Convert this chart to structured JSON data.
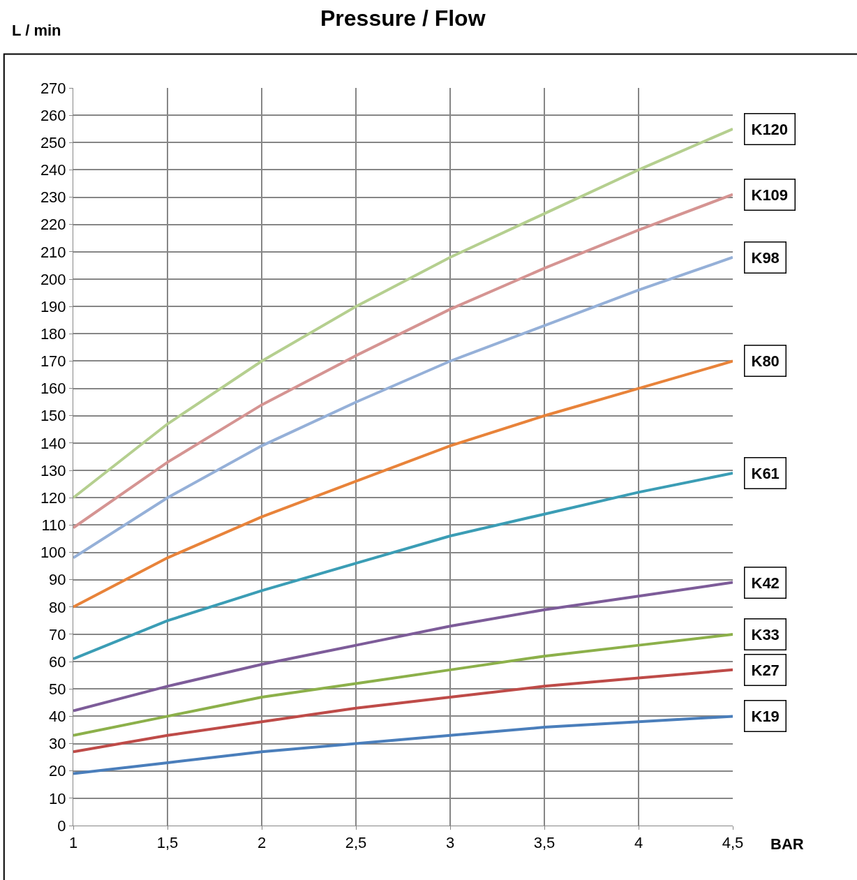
{
  "chart_data": {
    "type": "line",
    "title": "Pressure / Flow",
    "xlabel": "BAR",
    "ylabel": "L / min",
    "x": [
      1,
      1.5,
      2,
      2.5,
      3,
      3.5,
      4,
      4.5
    ],
    "series": [
      {
        "name": "K19",
        "color": "#4a7ebb",
        "values": [
          19,
          23,
          27,
          30,
          33,
          36,
          38,
          40
        ]
      },
      {
        "name": "K27",
        "color": "#be4b48",
        "values": [
          27,
          33,
          38,
          43,
          47,
          51,
          54,
          57
        ]
      },
      {
        "name": "K33",
        "color": "#8cb04a",
        "values": [
          33,
          40,
          47,
          52,
          57,
          62,
          66,
          70
        ]
      },
      {
        "name": "K42",
        "color": "#7d5c99",
        "values": [
          42,
          51,
          59,
          66,
          73,
          79,
          84,
          89
        ]
      },
      {
        "name": "K61",
        "color": "#3b9db5",
        "values": [
          61,
          75,
          86,
          96,
          106,
          114,
          122,
          129
        ]
      },
      {
        "name": "K80",
        "color": "#e8833a",
        "values": [
          80,
          98,
          113,
          126,
          139,
          150,
          160,
          170
        ]
      },
      {
        "name": "K98",
        "color": "#95b0d8",
        "values": [
          98,
          120,
          139,
          155,
          170,
          183,
          196,
          208
        ]
      },
      {
        "name": "K109",
        "color": "#d59492",
        "values": [
          109,
          133,
          154,
          172,
          189,
          204,
          218,
          231
        ]
      },
      {
        "name": "K120",
        "color": "#b5cf8f",
        "values": [
          120,
          147,
          170,
          190,
          208,
          224,
          240,
          255
        ]
      }
    ],
    "xlim": [
      1,
      4.5
    ],
    "xticks": [
      1,
      {
        "value": 1.5,
        "label": "1,5"
      },
      2,
      {
        "value": 2.5,
        "label": "2,5"
      },
      3,
      {
        "value": 3.5,
        "label": "3,5"
      },
      4,
      {
        "value": 4.5,
        "label": "4,5"
      }
    ],
    "ylim": [
      0,
      270
    ],
    "yticks": [
      0,
      10,
      20,
      30,
      40,
      50,
      60,
      70,
      80,
      90,
      100,
      110,
      120,
      130,
      140,
      150,
      160,
      170,
      180,
      190,
      200,
      210,
      220,
      230,
      240,
      250,
      260,
      270
    ],
    "grid": true,
    "marker": "none",
    "line_style": "solid",
    "legend": false
  }
}
